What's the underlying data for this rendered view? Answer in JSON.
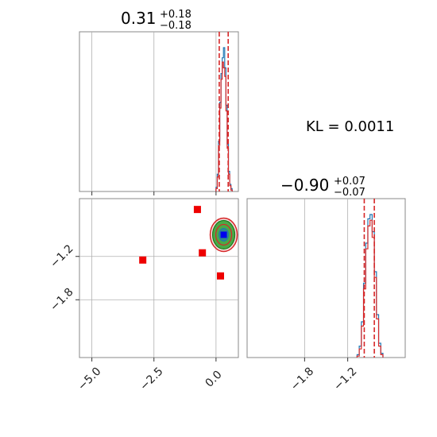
{
  "chart_data": [
    {
      "type": "histogram",
      "panel": "top-left",
      "title_main": "0.31",
      "title_sup": "+0.18",
      "title_sub": "−0.18",
      "xlim": [
        -5.5,
        0.9
      ],
      "x_ticks": [
        -5.0,
        -2.5,
        0.0
      ],
      "dashed_lines": [
        0.13,
        0.49
      ],
      "series": [
        {
          "color": "#1f77b4",
          "bins": [
            [
              0.0,
              0.03
            ],
            [
              0.05,
              0.12
            ],
            [
              0.1,
              0.35
            ],
            [
              0.15,
              0.62
            ],
            [
              0.2,
              0.82
            ],
            [
              0.25,
              0.93
            ],
            [
              0.3,
              1.0
            ],
            [
              0.35,
              0.86
            ],
            [
              0.4,
              0.6
            ],
            [
              0.45,
              0.33
            ],
            [
              0.5,
              0.14
            ],
            [
              0.55,
              0.05
            ],
            [
              0.6,
              0.02
            ]
          ]
        },
        {
          "color": "#d62728",
          "bins": [
            [
              0.0,
              0.02
            ],
            [
              0.05,
              0.1
            ],
            [
              0.1,
              0.32
            ],
            [
              0.15,
              0.58
            ],
            [
              0.2,
              0.78
            ],
            [
              0.25,
              0.9
            ],
            [
              0.3,
              0.86
            ],
            [
              0.35,
              0.8
            ],
            [
              0.4,
              0.56
            ],
            [
              0.45,
              0.3
            ],
            [
              0.5,
              0.12
            ],
            [
              0.55,
              0.04
            ],
            [
              0.6,
              0.01
            ]
          ]
        }
      ]
    },
    {
      "type": "scatter",
      "panel": "bottom-left",
      "xlim": [
        -5.5,
        0.9
      ],
      "ylim": [
        -2.6,
        -0.4
      ],
      "x_ticks": [
        -5.0,
        -2.5,
        0.0
      ],
      "x_tick_labels": [
        "−5.0",
        "−2.5",
        "0.0"
      ],
      "y_ticks": [
        -1.8,
        -1.2
      ],
      "y_tick_labels": [
        "−1.8",
        "−1.2"
      ],
      "red_markers": [
        {
          "x": -0.75,
          "y": -0.55
        },
        {
          "x": -2.95,
          "y": -1.25
        },
        {
          "x": -0.55,
          "y": -1.15
        },
        {
          "x": 0.18,
          "y": -1.47
        }
      ],
      "blue_marker": {
        "x": 0.31,
        "y": -0.9
      },
      "contour_center": {
        "x": 0.31,
        "y": -0.9
      }
    },
    {
      "type": "histogram",
      "panel": "bottom-right",
      "title_main": "−0.90",
      "title_sup": "+0.07",
      "title_sub": "−0.07",
      "xlim": [
        -2.6,
        -0.4
      ],
      "x_ticks": [
        -1.8,
        -1.2
      ],
      "x_tick_labels": [
        "−1.8",
        "−1.2"
      ],
      "dashed_lines": [
        -0.97,
        -0.83
      ],
      "series": [
        {
          "color": "#1f77b4",
          "bins": [
            [
              -1.07,
              0.02
            ],
            [
              -1.04,
              0.08
            ],
            [
              -1.01,
              0.25
            ],
            [
              -0.98,
              0.52
            ],
            [
              -0.95,
              0.8
            ],
            [
              -0.92,
              0.97
            ],
            [
              -0.89,
              1.0
            ],
            [
              -0.86,
              0.88
            ],
            [
              -0.83,
              0.6
            ],
            [
              -0.8,
              0.3
            ],
            [
              -0.77,
              0.1
            ],
            [
              -0.74,
              0.03
            ]
          ]
        },
        {
          "color": "#d62728",
          "bins": [
            [
              -1.07,
              0.01
            ],
            [
              -1.04,
              0.06
            ],
            [
              -1.01,
              0.22
            ],
            [
              -0.98,
              0.48
            ],
            [
              -0.95,
              0.76
            ],
            [
              -0.92,
              0.92
            ],
            [
              -0.89,
              0.96
            ],
            [
              -0.86,
              0.84
            ],
            [
              -0.83,
              0.56
            ],
            [
              -0.8,
              0.27
            ],
            [
              -0.77,
              0.08
            ],
            [
              -0.74,
              0.02
            ]
          ]
        }
      ]
    }
  ],
  "annotation": {
    "kl_text": "KL = 0.0011"
  }
}
